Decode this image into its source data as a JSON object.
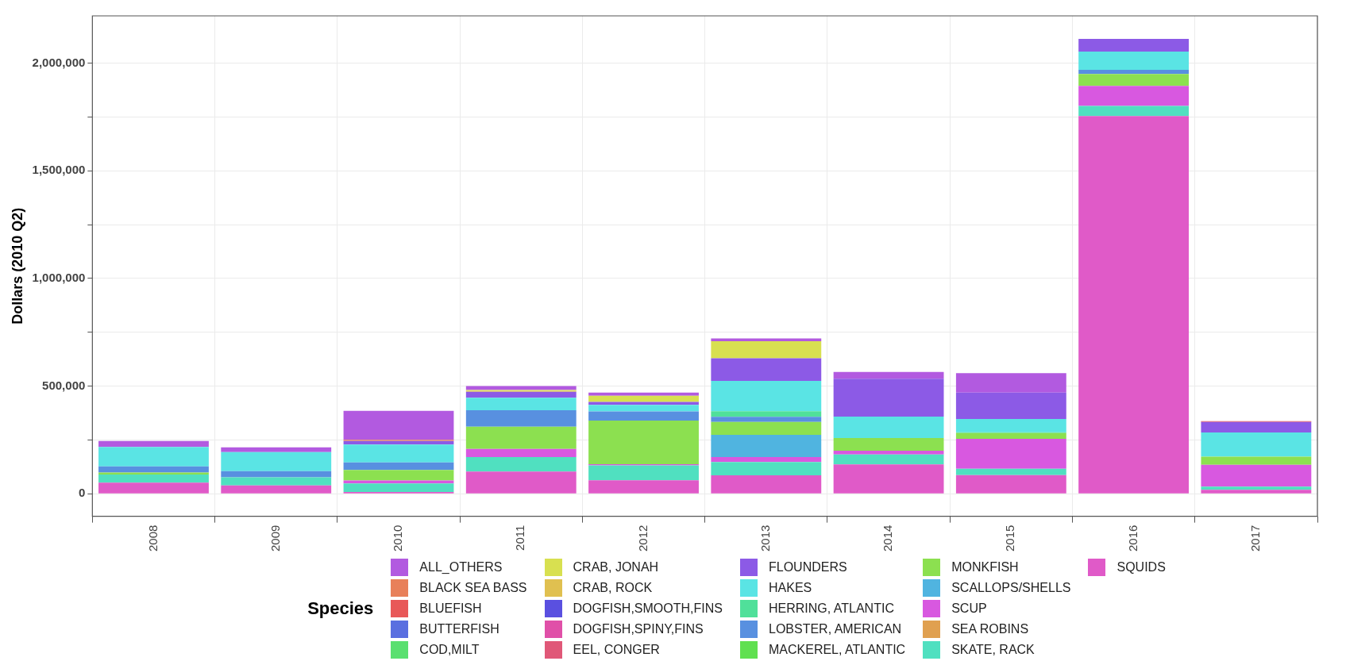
{
  "chart_data": {
    "type": "bar",
    "stacked": true,
    "ylabel": "Dollars (2010 Q2)",
    "legend_title": "Species",
    "legend": "bottom",
    "grid": true,
    "categories": [
      "2008",
      "2009",
      "2010",
      "2011",
      "2012",
      "2013",
      "2014",
      "2015",
      "2016",
      "2017"
    ],
    "ylim": [
      -105000,
      2220000
    ],
    "yticks": [
      0,
      {
        "value": 250000,
        "label": null
      },
      {
        "value": 500000,
        "label": "500,000"
      },
      {
        "value": 750000,
        "label": null
      },
      {
        "value": 1000000,
        "label": "1,000,000"
      },
      {
        "value": 1250000,
        "label": null
      },
      {
        "value": 1500000,
        "label": "1,500,000"
      },
      {
        "value": 1750000,
        "label": null
      },
      {
        "value": 2000000,
        "label": "2,000,000"
      }
    ],
    "series": [
      {
        "name": "SQUIDS",
        "color": "#e05ac8",
        "values": [
          51000,
          38000,
          8000,
          103000,
          62000,
          85000,
          136000,
          86000,
          1755000,
          18000
        ]
      },
      {
        "name": "SKATE, RACK",
        "color": "#50e0c0",
        "values": [
          38000,
          38000,
          40000,
          67000,
          69000,
          62000,
          46000,
          30000,
          47000,
          15000
        ]
      },
      {
        "name": "SEA ROBINS",
        "color": "#e0a050",
        "values": [
          0,
          0,
          0,
          0,
          0,
          0,
          0,
          0,
          0,
          0
        ]
      },
      {
        "name": "SCUP",
        "color": "#d858e0",
        "values": [
          0,
          0,
          13000,
          38000,
          6000,
          23000,
          18000,
          139000,
          93000,
          101000
        ]
      },
      {
        "name": "SCALLOPS/SHELLS",
        "color": "#50b4e0",
        "values": [
          0,
          0,
          0,
          0,
          0,
          103000,
          0,
          0,
          0,
          0
        ]
      },
      {
        "name": "MONKFISH",
        "color": "#8ce050",
        "values": [
          9000,
          0,
          49000,
          103000,
          203000,
          60000,
          59000,
          27000,
          55000,
          38000
        ]
      },
      {
        "name": "MACKEREL, ATLANTIC",
        "color": "#60e050",
        "values": [
          0,
          0,
          0,
          0,
          0,
          0,
          0,
          0,
          0,
          0
        ]
      },
      {
        "name": "LOBSTER, AMERICAN",
        "color": "#5890e0",
        "values": [
          29000,
          29000,
          35000,
          77000,
          42000,
          24000,
          0,
          0,
          19000,
          0
        ]
      },
      {
        "name": "HERRING, ATLANTIC",
        "color": "#50e09a",
        "values": [
          0,
          0,
          0,
          0,
          0,
          26000,
          0,
          3000,
          0,
          0
        ]
      },
      {
        "name": "HAKES",
        "color": "#5ae4e4",
        "values": [
          90000,
          88000,
          83000,
          58000,
          31000,
          141000,
          99000,
          62000,
          85000,
          112000
        ]
      },
      {
        "name": "FLOUNDERS",
        "color": "#8c5ae6",
        "values": [
          0,
          0,
          17000,
          27000,
          13000,
          105000,
          176000,
          123000,
          59000,
          49000
        ]
      },
      {
        "name": "EEL, CONGER",
        "color": "#e05878",
        "values": [
          0,
          0,
          0,
          0,
          0,
          0,
          0,
          0,
          0,
          0
        ]
      },
      {
        "name": "DOGFISH,SPINY,FINS",
        "color": "#e050a8",
        "values": [
          0,
          0,
          0,
          0,
          0,
          0,
          0,
          0,
          0,
          0
        ]
      },
      {
        "name": "DOGFISH,SMOOTH,FINS",
        "color": "#5a50e0",
        "values": [
          0,
          0,
          0,
          0,
          0,
          0,
          0,
          0,
          0,
          0
        ]
      },
      {
        "name": "CRAB, ROCK",
        "color": "#e0c050",
        "values": [
          0,
          0,
          0,
          4000,
          0,
          0,
          0,
          0,
          0,
          0
        ]
      },
      {
        "name": "CRAB, JONAH",
        "color": "#d8e050",
        "values": [
          0,
          0,
          0,
          5000,
          29000,
          79000,
          0,
          0,
          0,
          0
        ]
      },
      {
        "name": "COD,MILT",
        "color": "#5ae070",
        "values": [
          0,
          0,
          0,
          0,
          0,
          0,
          0,
          0,
          0,
          0
        ]
      },
      {
        "name": "BUTTERFISH",
        "color": "#5a6fe0",
        "values": [
          0,
          0,
          0,
          0,
          0,
          0,
          0,
          0,
          0,
          0
        ]
      },
      {
        "name": "BLUEFISH",
        "color": "#e85858",
        "values": [
          0,
          0,
          0,
          0,
          0,
          0,
          0,
          0,
          0,
          4000
        ]
      },
      {
        "name": "BLACK SEA BASS",
        "color": "#e8805a",
        "values": [
          0,
          0,
          5000,
          0,
          0,
          0,
          0,
          0,
          0,
          0
        ]
      },
      {
        "name": "ALL_OTHERS",
        "color": "#b25ae0",
        "values": [
          28000,
          22000,
          135000,
          18000,
          15000,
          13000,
          32000,
          90000,
          0,
          0
        ]
      }
    ]
  }
}
